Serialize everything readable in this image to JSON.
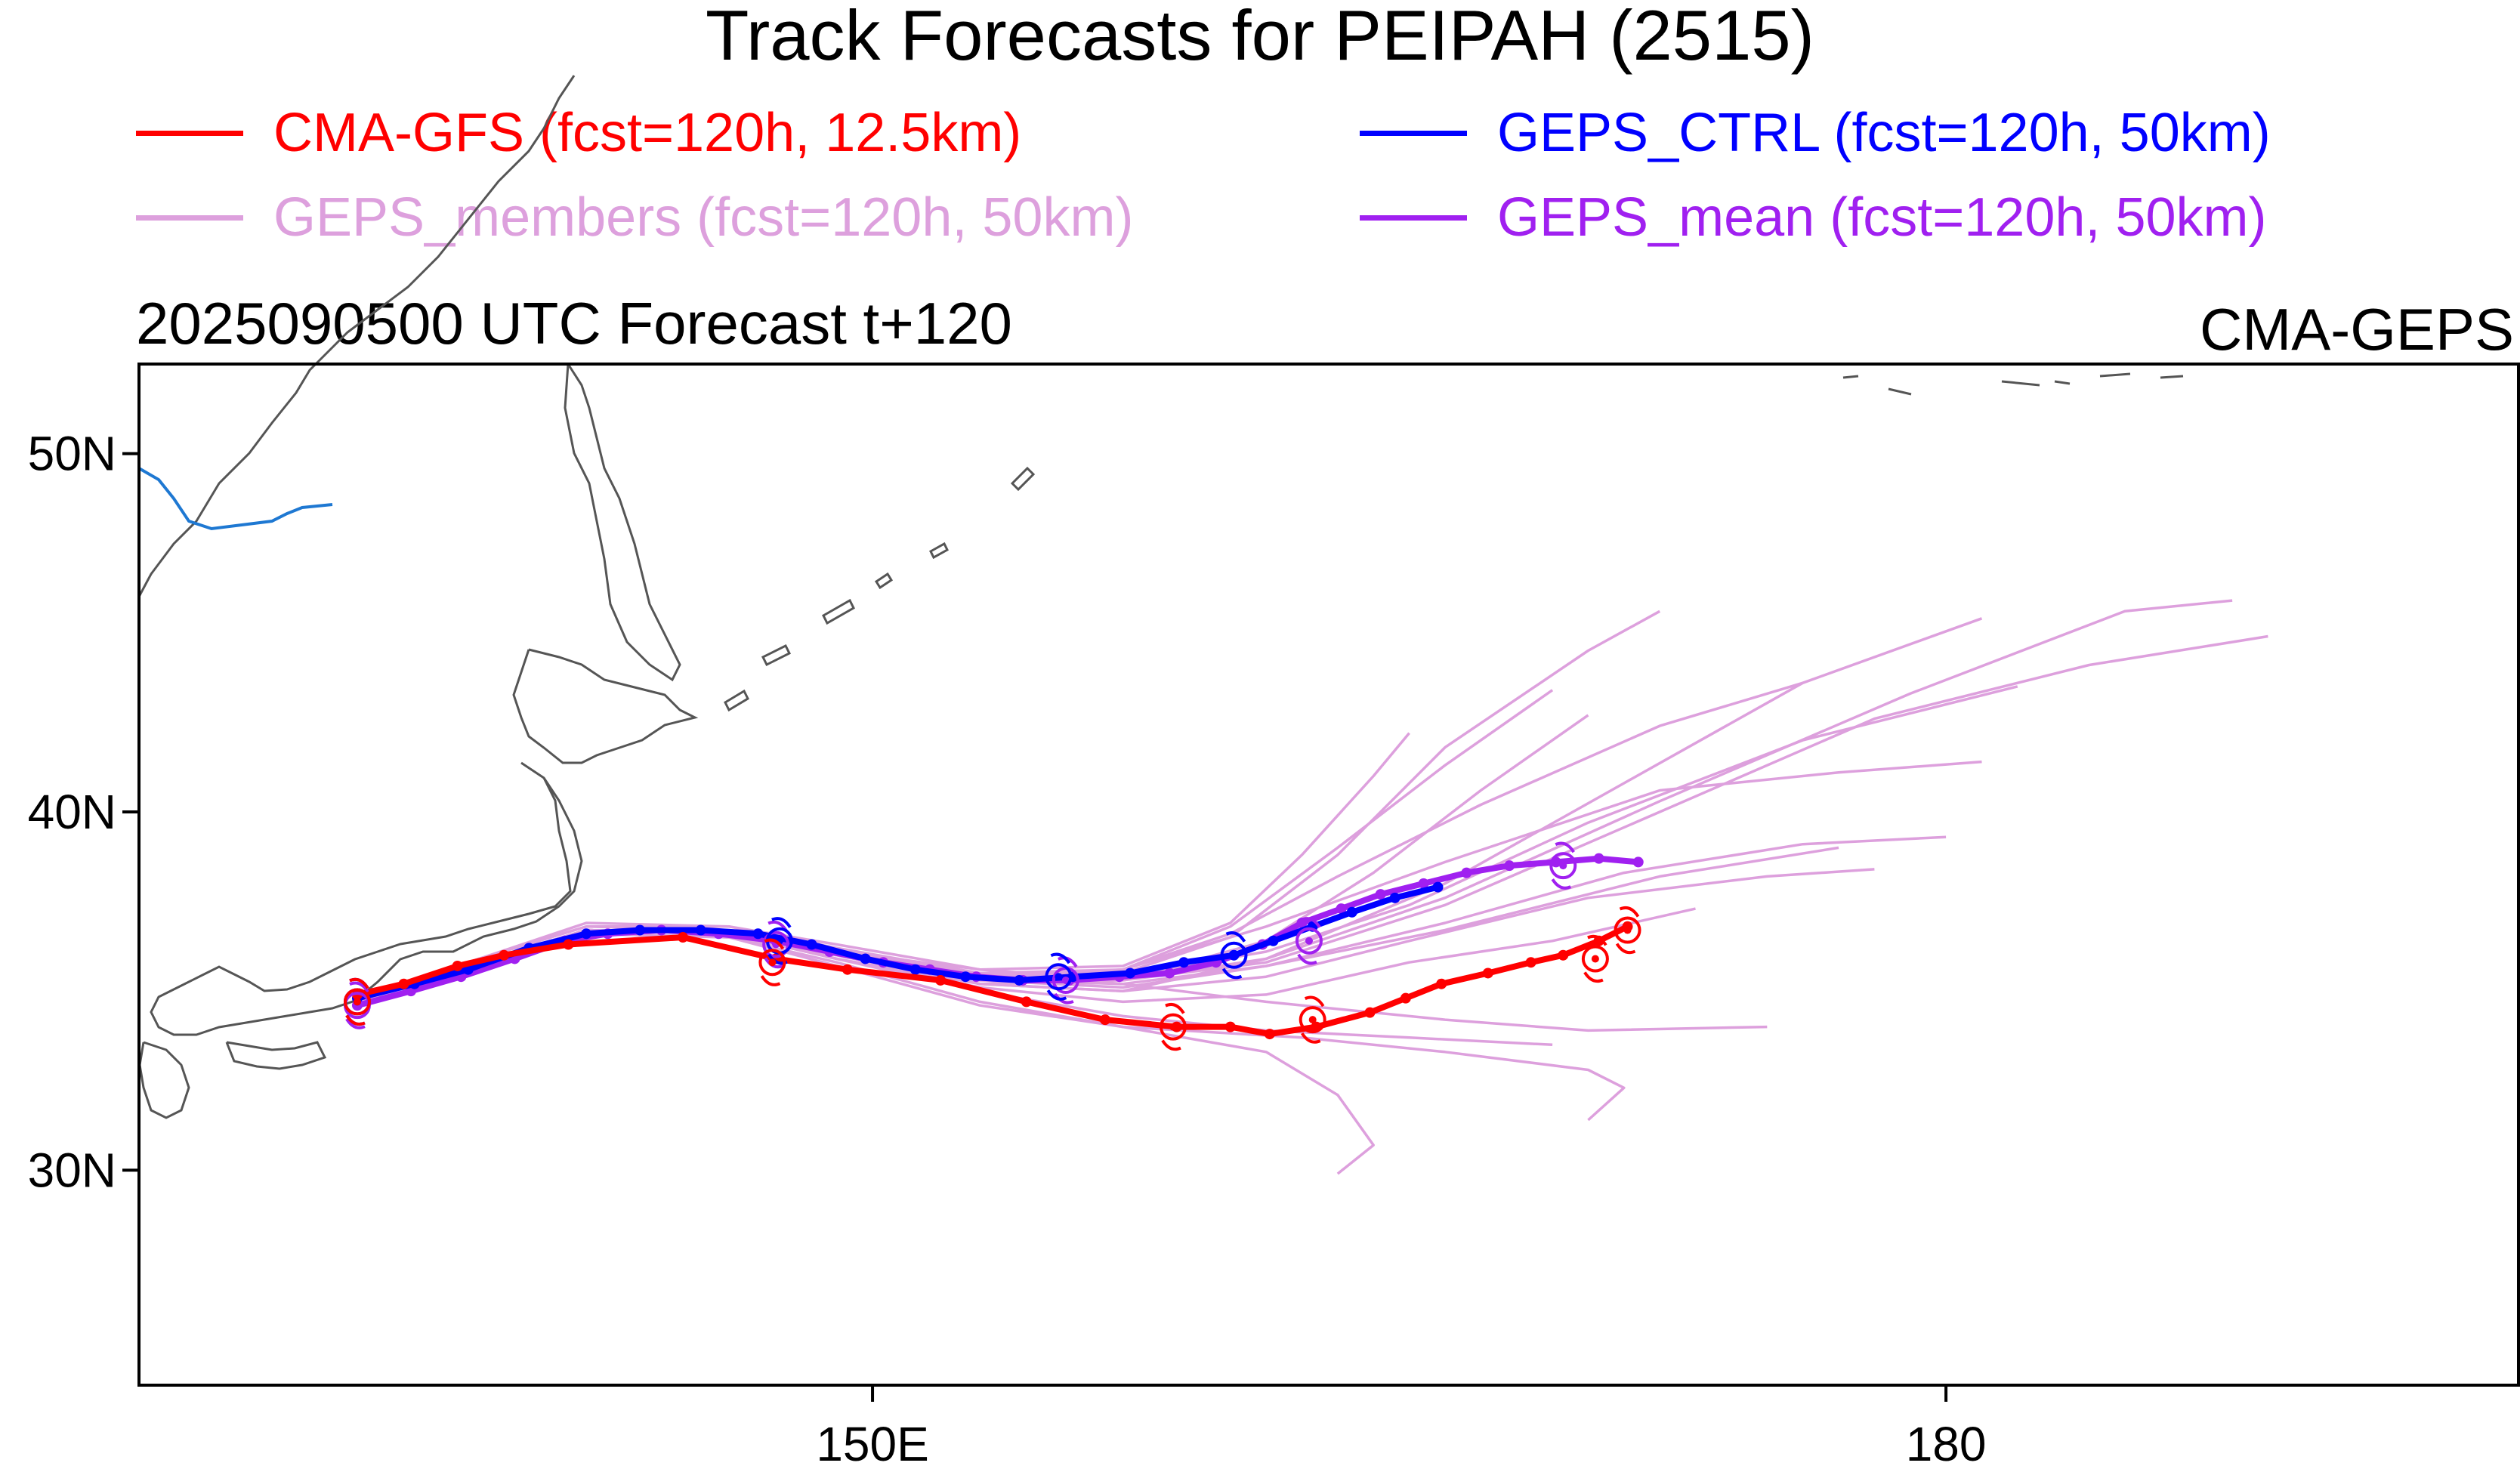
{
  "title": "Track Forecasts for PEIPAH (2515)",
  "legend": [
    {
      "label": "CMA-GFS (fcst=120h, 12.5km)",
      "color": "#ff0000"
    },
    {
      "label": "GEPS_CTRL (fcst=120h, 50km)",
      "color": "#0000ff"
    },
    {
      "label": "GEPS_members (fcst=120h, 50km)",
      "color": "#dda0dd"
    },
    {
      "label": "GEPS_mean (fcst=120h, 50km)",
      "color": "#a020f0"
    }
  ],
  "subtitle_left": "2025090500 UTC Forecast t+120",
  "subtitle_right": "CMA-GEPS",
  "axes": {
    "lon_range": [
      129.5,
      196
    ],
    "lat_range": [
      24,
      52.5
    ],
    "lat_ticks": [
      {
        "value": 50,
        "label": "50N"
      },
      {
        "value": 40,
        "label": "40N"
      },
      {
        "value": 30,
        "label": "30N"
      }
    ],
    "lon_ticks": [
      {
        "value": 150,
        "label": "150E"
      },
      {
        "value": 180,
        "label": "180"
      }
    ]
  },
  "map": {
    "coastline_color": "#555555",
    "river_color": "#1e78d2"
  },
  "tracks": {
    "cma_gfs": {
      "color": "#ff0000",
      "points": [
        [
          135.6,
          34.9
        ],
        [
          136.9,
          35.2
        ],
        [
          138.4,
          35.7
        ],
        [
          139.7,
          36.0
        ],
        [
          141.5,
          36.3
        ],
        [
          144.7,
          36.5
        ],
        [
          147.3,
          35.9
        ],
        [
          149.3,
          35.6
        ],
        [
          151.9,
          35.3
        ],
        [
          154.3,
          34.7
        ],
        [
          156.5,
          34.2
        ],
        [
          158.5,
          34.0
        ],
        [
          160.0,
          34.0
        ],
        [
          161.1,
          33.8
        ],
        [
          162.4,
          34.0
        ],
        [
          163.9,
          34.4
        ],
        [
          164.9,
          34.8
        ],
        [
          165.9,
          35.2
        ],
        [
          167.2,
          35.5
        ],
        [
          168.4,
          35.8
        ],
        [
          169.3,
          36.0
        ],
        [
          170.3,
          36.4
        ],
        [
          171.1,
          36.8
        ]
      ],
      "markers": [
        [
          135.6,
          34.7
        ],
        [
          147.2,
          35.8
        ],
        [
          158.4,
          34.0
        ],
        [
          162.3,
          34.2
        ],
        [
          170.2,
          35.9
        ],
        [
          171.1,
          36.7
        ]
      ]
    },
    "geps_ctrl": {
      "color": "#0000ff",
      "points": [
        [
          135.6,
          34.8
        ],
        [
          137.2,
          35.2
        ],
        [
          138.7,
          35.6
        ],
        [
          140.4,
          36.2
        ],
        [
          142.0,
          36.6
        ],
        [
          143.5,
          36.7
        ],
        [
          145.2,
          36.7
        ],
        [
          146.8,
          36.6
        ],
        [
          148.3,
          36.3
        ],
        [
          149.8,
          35.9
        ],
        [
          151.2,
          35.6
        ],
        [
          152.6,
          35.4
        ],
        [
          154.1,
          35.3
        ],
        [
          155.6,
          35.4
        ],
        [
          157.2,
          35.5
        ],
        [
          158.7,
          35.8
        ],
        [
          160.1,
          36.0
        ],
        [
          161.2,
          36.4
        ],
        [
          162.3,
          36.8
        ],
        [
          163.4,
          37.2
        ],
        [
          164.6,
          37.6
        ],
        [
          165.8,
          37.9
        ]
      ],
      "markers": [
        [
          135.6,
          34.7
        ],
        [
          147.4,
          36.4
        ],
        [
          155.2,
          35.4
        ],
        [
          160.1,
          36.0
        ]
      ]
    },
    "geps_mean": {
      "color": "#a020f0",
      "points": [
        [
          135.6,
          34.6
        ],
        [
          137.1,
          35.0
        ],
        [
          138.5,
          35.4
        ],
        [
          140.0,
          35.9
        ],
        [
          141.4,
          36.4
        ],
        [
          142.6,
          36.6
        ],
        [
          144.1,
          36.7
        ],
        [
          145.7,
          36.6
        ],
        [
          147.3,
          36.4
        ],
        [
          148.8,
          36.1
        ],
        [
          150.3,
          35.8
        ],
        [
          151.6,
          35.6
        ],
        [
          152.9,
          35.4
        ],
        [
          154.2,
          35.3
        ],
        [
          155.5,
          35.3
        ],
        [
          156.9,
          35.4
        ],
        [
          158.3,
          35.5
        ],
        [
          159.6,
          35.8
        ],
        [
          160.9,
          36.3
        ],
        [
          162.0,
          36.9
        ],
        [
          163.1,
          37.3
        ],
        [
          164.2,
          37.7
        ],
        [
          165.4,
          38.0
        ],
        [
          166.6,
          38.3
        ],
        [
          167.8,
          38.5
        ],
        [
          169.1,
          38.6
        ],
        [
          170.3,
          38.7
        ],
        [
          171.4,
          38.6
        ]
      ],
      "markers": [
        [
          135.6,
          34.6
        ],
        [
          147.3,
          36.3
        ],
        [
          155.4,
          35.3
        ],
        [
          162.2,
          36.4
        ],
        [
          169.3,
          38.5
        ]
      ]
    },
    "geps_members": {
      "color": "#dda0dd",
      "lines": [
        [
          [
            135.6,
            34.7
          ],
          [
            139,
            35.9
          ],
          [
            142,
            36.9
          ],
          [
            146,
            36.8
          ],
          [
            149,
            36.2
          ],
          [
            153,
            35.5
          ],
          [
            157,
            35.2
          ],
          [
            161,
            34.7
          ],
          [
            166,
            34.2
          ],
          [
            170,
            33.9
          ],
          [
            175,
            34.0
          ]
        ],
        [
          [
            135.6,
            34.7
          ],
          [
            139,
            35.8
          ],
          [
            142,
            36.7
          ],
          [
            146,
            36.6
          ],
          [
            149,
            35.9
          ],
          [
            153,
            35.2
          ],
          [
            157,
            35.0
          ],
          [
            161,
            35.4
          ],
          [
            165,
            36.4
          ],
          [
            170,
            37.6
          ],
          [
            175,
            38.2
          ],
          [
            178,
            38.4
          ]
        ],
        [
          [
            135.6,
            34.7
          ],
          [
            139,
            35.7
          ],
          [
            142,
            36.6
          ],
          [
            146,
            36.5
          ],
          [
            149,
            36.0
          ],
          [
            153,
            35.3
          ],
          [
            157,
            35.6
          ],
          [
            160,
            36.6
          ],
          [
            163,
            38.2
          ],
          [
            167,
            40.2
          ],
          [
            172,
            42.4
          ],
          [
            176,
            43.6
          ]
        ],
        [
          [
            135.6,
            34.7
          ],
          [
            139,
            35.9
          ],
          [
            142,
            36.8
          ],
          [
            146,
            36.7
          ],
          [
            149,
            36.1
          ],
          [
            153,
            35.4
          ],
          [
            157,
            35.4
          ],
          [
            161,
            36.1
          ],
          [
            165,
            37.4
          ],
          [
            170,
            39.7
          ],
          [
            176,
            42.0
          ],
          [
            182,
            43.5
          ]
        ],
        [
          [
            135.6,
            34.7
          ],
          [
            139,
            35.8
          ],
          [
            142,
            36.7
          ],
          [
            146,
            36.6
          ],
          [
            149,
            36.0
          ],
          [
            153,
            35.2
          ],
          [
            157,
            35.0
          ],
          [
            161,
            35.9
          ],
          [
            166,
            38.0
          ],
          [
            171,
            40.8
          ],
          [
            176,
            43.6
          ],
          [
            181,
            45.4
          ]
        ],
        [
          [
            135.6,
            34.7
          ],
          [
            139,
            35.8
          ],
          [
            142,
            36.7
          ],
          [
            146,
            36.6
          ],
          [
            149,
            36.0
          ],
          [
            153,
            35.5
          ],
          [
            157,
            35.5
          ],
          [
            160,
            36.5
          ],
          [
            163,
            38.8
          ],
          [
            166,
            41.8
          ],
          [
            170,
            44.5
          ],
          [
            172,
            45.6
          ]
        ],
        [
          [
            135.6,
            34.7
          ],
          [
            139,
            35.9
          ],
          [
            142,
            36.8
          ],
          [
            146,
            36.8
          ],
          [
            149,
            36.3
          ],
          [
            153,
            35.6
          ],
          [
            157,
            35.3
          ],
          [
            161,
            35.9
          ],
          [
            166,
            37.6
          ],
          [
            172,
            40.3
          ],
          [
            179,
            43.3
          ],
          [
            185,
            45.6
          ],
          [
            188,
            45.9
          ]
        ],
        [
          [
            135.6,
            34.7
          ],
          [
            139,
            35.8
          ],
          [
            142,
            36.7
          ],
          [
            146,
            36.6
          ],
          [
            149,
            36.1
          ],
          [
            153,
            35.5
          ],
          [
            157,
            35.3
          ],
          [
            161,
            35.8
          ],
          [
            166,
            37.4
          ],
          [
            172,
            40.0
          ],
          [
            178,
            42.6
          ],
          [
            184,
            44.1
          ],
          [
            189,
            44.9
          ]
        ],
        [
          [
            135.6,
            34.7
          ],
          [
            139,
            35.8
          ],
          [
            142,
            36.7
          ],
          [
            146,
            36.6
          ],
          [
            149,
            35.9
          ],
          [
            153,
            35.1
          ],
          [
            157,
            34.7
          ],
          [
            161,
            34.9
          ],
          [
            165,
            35.8
          ],
          [
            169,
            36.4
          ],
          [
            173,
            37.3
          ]
        ],
        [
          [
            135.6,
            34.7
          ],
          [
            139,
            35.7
          ],
          [
            142,
            36.6
          ],
          [
            146,
            36.5
          ],
          [
            149,
            35.8
          ],
          [
            153,
            34.7
          ],
          [
            157,
            34.0
          ],
          [
            161,
            33.3
          ],
          [
            163,
            32.1
          ],
          [
            164,
            30.7
          ],
          [
            163,
            29.9
          ]
        ],
        [
          [
            135.6,
            34.7
          ],
          [
            139,
            35.7
          ],
          [
            142,
            36.6
          ],
          [
            146,
            36.5
          ],
          [
            149,
            35.7
          ],
          [
            153,
            34.6
          ],
          [
            157,
            34.0
          ],
          [
            162,
            33.7
          ],
          [
            166,
            33.3
          ],
          [
            170,
            32.8
          ],
          [
            171,
            32.3
          ],
          [
            170,
            31.4
          ]
        ],
        [
          [
            135.6,
            34.7
          ],
          [
            139,
            35.8
          ],
          [
            142,
            36.7
          ],
          [
            146,
            36.6
          ],
          [
            149,
            36.0
          ],
          [
            153,
            35.2
          ],
          [
            157,
            35.3
          ],
          [
            161,
            36.4
          ],
          [
            164,
            38.3
          ],
          [
            167,
            40.6
          ],
          [
            170,
            42.7
          ]
        ],
        [
          [
            135.6,
            34.7
          ],
          [
            139,
            35.8
          ],
          [
            142,
            36.7
          ],
          [
            146,
            36.6
          ],
          [
            149,
            36.0
          ],
          [
            153,
            35.3
          ],
          [
            157,
            35.1
          ],
          [
            161,
            35.7
          ],
          [
            166,
            36.7
          ],
          [
            172,
            38.2
          ],
          [
            177,
            39.0
          ]
        ],
        [
          [
            135.6,
            34.7
          ],
          [
            139,
            35.8
          ],
          [
            142,
            36.7
          ],
          [
            146,
            36.6
          ],
          [
            149,
            36.0
          ],
          [
            153,
            35.4
          ],
          [
            157,
            35.6
          ],
          [
            161,
            36.8
          ],
          [
            166,
            38.6
          ],
          [
            172,
            40.6
          ],
          [
            177,
            41.1
          ],
          [
            181,
            41.4
          ]
        ],
        [
          [
            135.6,
            34.7
          ],
          [
            139,
            35.8
          ],
          [
            142,
            36.7
          ],
          [
            146,
            36.6
          ],
          [
            149,
            36.1
          ],
          [
            153,
            35.6
          ],
          [
            157,
            35.7
          ],
          [
            160,
            36.9
          ],
          [
            162,
            38.8
          ],
          [
            164,
            41.0
          ],
          [
            165,
            42.2
          ]
        ],
        [
          [
            135.6,
            34.7
          ],
          [
            139,
            35.8
          ],
          [
            142,
            36.7
          ],
          [
            146,
            36.6
          ],
          [
            149,
            36.0
          ],
          [
            153,
            35.3
          ],
          [
            157,
            35.2
          ],
          [
            161,
            35.7
          ],
          [
            166,
            36.9
          ],
          [
            171,
            38.3
          ],
          [
            176,
            39.1
          ],
          [
            180,
            39.3
          ]
        ],
        [
          [
            135.6,
            34.7
          ],
          [
            139,
            35.8
          ],
          [
            142,
            36.7
          ],
          [
            146,
            36.6
          ],
          [
            149,
            35.9
          ],
          [
            153,
            35.0
          ],
          [
            157,
            34.3
          ],
          [
            161,
            33.9
          ],
          [
            165,
            33.7
          ],
          [
            169,
            33.5
          ]
        ],
        [
          [
            135.6,
            34.7
          ],
          [
            139,
            35.8
          ],
          [
            142,
            36.7
          ],
          [
            146,
            36.6
          ],
          [
            149,
            36.1
          ],
          [
            153,
            35.5
          ],
          [
            157,
            35.6
          ],
          [
            160,
            36.8
          ],
          [
            163,
            39.0
          ],
          [
            166,
            41.3
          ],
          [
            169,
            43.4
          ]
        ]
      ]
    }
  }
}
